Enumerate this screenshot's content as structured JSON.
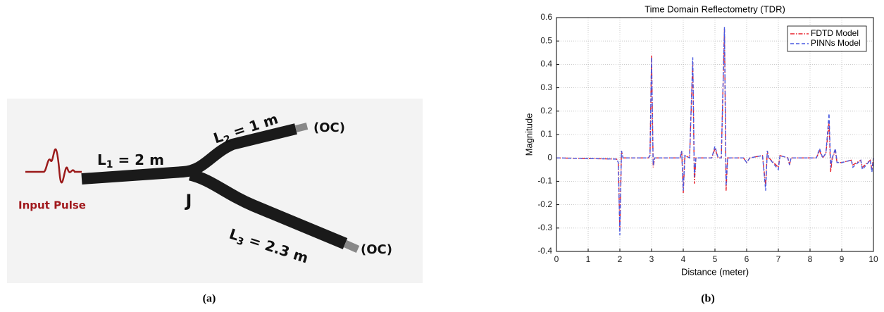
{
  "diagram": {
    "input_label": "Input Pulse",
    "junction": "J",
    "cable_labels": [
      {
        "symbol": "L",
        "subscript": "1",
        "text": " = 2 m"
      },
      {
        "symbol": "L",
        "subscript": "2",
        "text": " = 1 m"
      },
      {
        "symbol": "L",
        "subscript": "3",
        "text": " = 2.3 m"
      }
    ],
    "end_labels": [
      "(OC)",
      "(OC)"
    ],
    "caption": "(a)"
  },
  "chart_data": {
    "type": "line",
    "title": "Time Domain Reflectometry (TDR)",
    "x_label": "Distance (meter)",
    "y_label": "Magnitude",
    "caption": "(b)",
    "x": [
      0,
      1.9,
      1.95,
      2.0,
      2.05,
      2.1,
      2.9,
      2.95,
      3.0,
      3.05,
      3.1,
      3.9,
      3.95,
      4.0,
      4.05,
      4.2,
      4.3,
      4.35,
      4.4,
      4.9,
      5.0,
      5.1,
      5.2,
      5.3,
      5.35,
      5.4,
      5.9,
      6.0,
      6.1,
      6.5,
      6.6,
      6.65,
      6.7,
      7.0,
      7.05,
      7.3,
      7.35,
      7.4,
      8.2,
      8.3,
      8.4,
      8.5,
      8.6,
      8.65,
      8.7,
      8.8,
      8.85,
      9.0,
      9.3,
      9.35,
      9.6,
      9.65,
      9.9,
      9.95,
      10
    ],
    "series": [
      {
        "name": "FDTD Model",
        "color": "#e8202a",
        "dash": "6,2,1.5,2",
        "values": [
          0,
          -0.005,
          -0.02,
          -0.31,
          0.03,
          0,
          0,
          0.01,
          0.44,
          -0.04,
          0,
          0,
          0.03,
          -0.15,
          0.01,
          0,
          0.41,
          -0.11,
          0,
          0,
          0.04,
          0,
          0,
          0.55,
          -0.14,
          0,
          0,
          -0.02,
          0,
          0.01,
          -0.12,
          0.03,
          0,
          -0.04,
          0.01,
          0,
          -0.03,
          0,
          0,
          0.03,
          0,
          0.02,
          0.15,
          -0.06,
          0,
          0.03,
          -0.02,
          -0.02,
          -0.01,
          -0.03,
          -0.01,
          -0.04,
          -0.01,
          -0.05,
          0
        ]
      },
      {
        "name": "PINNs Model",
        "color": "#4a5ae0",
        "dash": "5,3",
        "values": [
          0,
          -0.005,
          -0.02,
          -0.33,
          0.03,
          0,
          0,
          0.01,
          0.43,
          -0.03,
          0,
          0,
          0.03,
          -0.14,
          0.01,
          0,
          0.43,
          -0.08,
          0,
          0,
          0.05,
          0,
          0,
          0.56,
          -0.12,
          0,
          0,
          -0.02,
          0,
          0.01,
          -0.14,
          0.03,
          0,
          -0.05,
          0.01,
          0,
          -0.03,
          0,
          0,
          0.04,
          0,
          0.02,
          0.19,
          -0.04,
          0,
          0.04,
          -0.02,
          -0.02,
          -0.01,
          -0.04,
          -0.01,
          -0.05,
          -0.01,
          -0.06,
          0
        ]
      }
    ],
    "xlim": [
      0,
      10
    ],
    "xticks": [
      0,
      1,
      2,
      3,
      4,
      5,
      6,
      7,
      8,
      9,
      10
    ],
    "ylim": [
      -0.4,
      0.6
    ],
    "yticks": [
      -0.4,
      -0.3,
      -0.2,
      -0.1,
      0,
      0.1,
      0.2,
      0.3,
      0.4,
      0.5,
      0.6
    ],
    "grid": true,
    "legend": "upper-right"
  }
}
